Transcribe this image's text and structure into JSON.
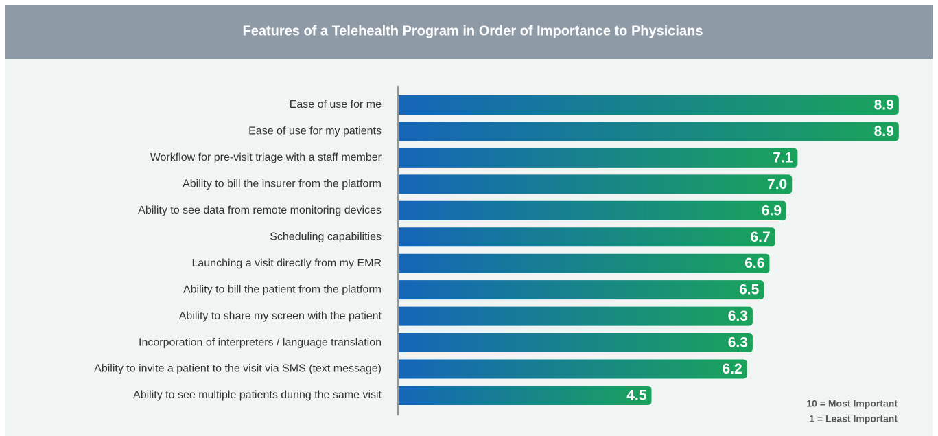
{
  "chart_data": {
    "type": "hbar",
    "title": "Features of a Telehealth Program in Order of Importance to Physicians",
    "categories": [
      "Ease of use for me",
      "Ease of use for my patients",
      "Workflow for pre-visit triage with a staff member",
      "Ability to bill the insurer from the platform",
      "Ability to see data from remote monitoring devices",
      "Scheduling capabilities",
      "Launching a visit directly from my EMR",
      "Ability to bill the patient from the platform",
      "Ability to share my screen with the patient",
      "Incorporation of interpreters / language translation",
      "Ability to invite a patient to the visit via SMS (text message)",
      "Ability to see multiple patients during the same visit"
    ],
    "values": [
      8.9,
      8.9,
      7.1,
      7.0,
      6.9,
      6.7,
      6.6,
      6.5,
      6.3,
      6.3,
      6.2,
      4.5
    ],
    "value_labels": [
      "8.9",
      "8.9",
      "7.1",
      "7.0",
      "6.9",
      "6.7",
      "6.6",
      "6.5",
      "6.3",
      "6.3",
      "6.2",
      "4.5"
    ],
    "colors": [
      "#1565b8",
      "#1aa35a"
    ],
    "xlim": [
      0,
      9
    ],
    "notes": [
      "10 = Most Important",
      "1 = Least Important"
    ]
  }
}
